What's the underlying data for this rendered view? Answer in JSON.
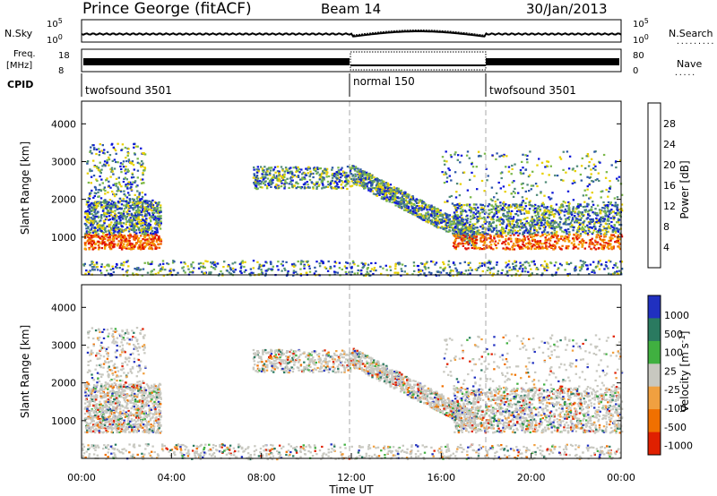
{
  "header": {
    "station": "Prince George (fitACF)",
    "beam": "Beam 14",
    "date": "30/Jan/2013"
  },
  "strip_labels": {
    "nsky": "N.Sky",
    "nsearch": "N.Search",
    "nsearch_dots": "·········",
    "freq_line1": "Freq.",
    "freq_line2": "[MHz]",
    "nave": "Nave",
    "nave_dots": "·····",
    "cpid": "CPID",
    "nsky_tick_top": "10^5",
    "nsky_tick_bottom": "10^0",
    "nsearch_tick_top": "10^5",
    "nsearch_tick_bottom": "10^0",
    "freq_tick_top": "18",
    "freq_tick_bottom": "8",
    "nave_tick_top": "80",
    "nave_tick_bottom": "0"
  },
  "cpid_segments": [
    {
      "start_hour": 0,
      "end_hour": 12,
      "label": "twofsound 3501"
    },
    {
      "start_hour": 12,
      "end_hour": 18,
      "label": "normal 150"
    },
    {
      "start_hour": 18,
      "end_hour": 24,
      "label": "twofsound 3501"
    }
  ],
  "chart_data": [
    {
      "type": "heatmap",
      "name": "Power",
      "ylabel": "Slant Range [km]",
      "yticks": [
        "1000",
        "2000",
        "3000",
        "4000"
      ],
      "ylim": [
        0,
        4600
      ],
      "colorbar_label": "Power [dB]",
      "colorbar_ticks": [
        "4",
        "8",
        "12",
        "16",
        "20",
        "24",
        "28"
      ],
      "colorbar_range": [
        0,
        30
      ],
      "colors": [
        "#0a14d8",
        "#2c57a8",
        "#4f8a78",
        "#7ab84a",
        "#e8d000",
        "#f5a000",
        "#f06000",
        "#e01000"
      ],
      "features": [
        {
          "label": "morning echo band",
          "hours": [
            0,
            3.5
          ],
          "range_km": [
            800,
            2000
          ]
        },
        {
          "label": "descending afternoon echo",
          "hours": [
            7.5,
            17.5
          ],
          "range_km": [
            800,
            2800
          ]
        },
        {
          "label": "evening echo band",
          "hours": [
            16.5,
            24
          ],
          "range_km": [
            700,
            1900
          ]
        }
      ]
    },
    {
      "type": "heatmap",
      "name": "Velocity",
      "xlabel": "Time UT",
      "ylabel": "Slant Range [km]",
      "yticks": [
        "1000",
        "2000",
        "3000",
        "4000"
      ],
      "ylim": [
        0,
        4600
      ],
      "xticks": [
        "00:00",
        "04:00",
        "08:00",
        "12:00",
        "16:00",
        "20:00",
        "00:00"
      ],
      "xlim": [
        0,
        24
      ],
      "colorbar_label": "Velocity [m s^-1]",
      "colorbar_ticks": [
        "1000",
        "500",
        "100",
        "25",
        "-25",
        "-100",
        "-500",
        "-1000"
      ],
      "colors": [
        "#2030c0",
        "#2a7a60",
        "#40b040",
        "#c8c8c0",
        "#f0a040",
        "#f07000",
        "#e02000"
      ]
    }
  ],
  "axes": {
    "time_label": "Time UT",
    "x_ticks": [
      "00:00",
      "04:00",
      "08:00",
      "12:00",
      "16:00",
      "20:00",
      "00:00"
    ]
  }
}
